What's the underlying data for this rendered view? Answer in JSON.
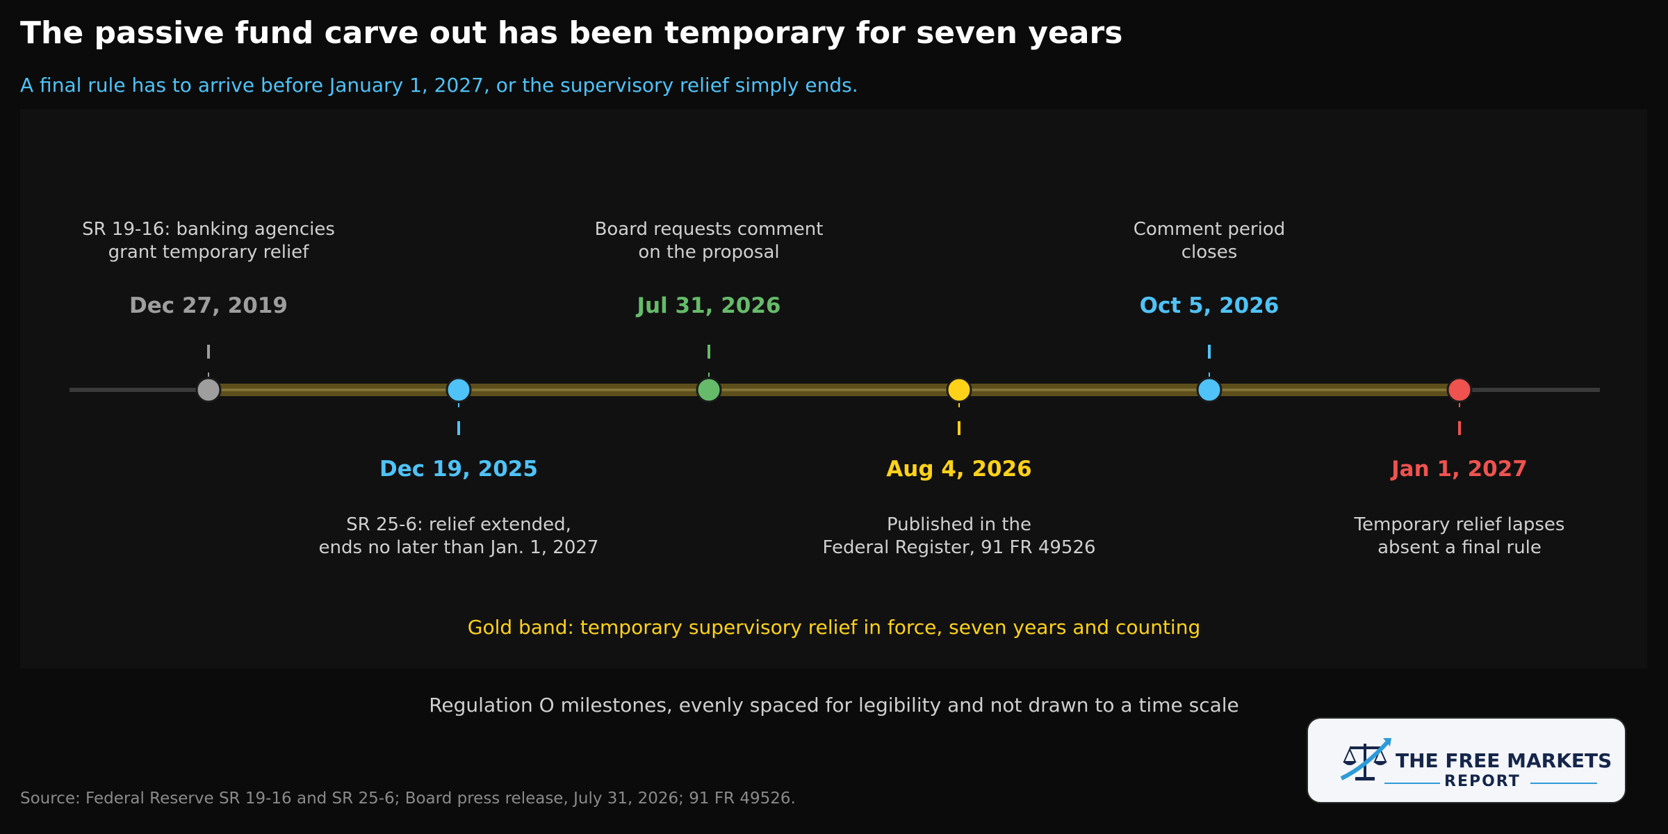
{
  "title": "The passive fund carve out has been temporary for seven years",
  "subtitle": "A final rule has to arrive before January 1, 2027, or the supervisory relief simply ends.",
  "events": [
    {
      "date": "Dec 27, 2019",
      "desc": [
        "SR 19-16: banking agencies",
        "grant temporary relief"
      ],
      "color": "#9e9e9e",
      "side": "above"
    },
    {
      "date": "Dec 19, 2025",
      "desc": [
        "SR 25-6: relief extended,",
        "ends no later than Jan. 1, 2027"
      ],
      "color": "#4fc3f7",
      "side": "below"
    },
    {
      "date": "Jul 31, 2026",
      "desc": [
        "Board requests comment",
        "on the proposal"
      ],
      "color": "#66bb6a",
      "side": "above"
    },
    {
      "date": "Aug 4, 2026",
      "desc": [
        "Published in the",
        "Federal Register, 91 FR 49526"
      ],
      "color": "#ffd21a",
      "side": "below"
    },
    {
      "date": "Oct 5, 2026",
      "desc": [
        "Comment period",
        "closes"
      ],
      "color": "#4fc3f7",
      "side": "above"
    },
    {
      "date": "Jan 1, 2027",
      "desc": [
        "Temporary relief lapses",
        "absent a final rule"
      ],
      "color": "#ef5350",
      "side": "below"
    }
  ],
  "band_note": "Gold band: temporary supervisory relief in force, seven years and counting",
  "caption": "Regulation O milestones, evenly spaced for legibility and not drawn to a time scale",
  "source": "Source: Federal Reserve SR 19-16 and SR 25-6; Board press release, July 31, 2026; 91 FR 49526.",
  "logo": {
    "name": "THE FREE MARKETS",
    "sub": "REPORT"
  },
  "colors": {
    "band": "#6b5a1e",
    "axis": "#3a3a3a",
    "background": "#0b0b0b",
    "panel": "#111111"
  }
}
